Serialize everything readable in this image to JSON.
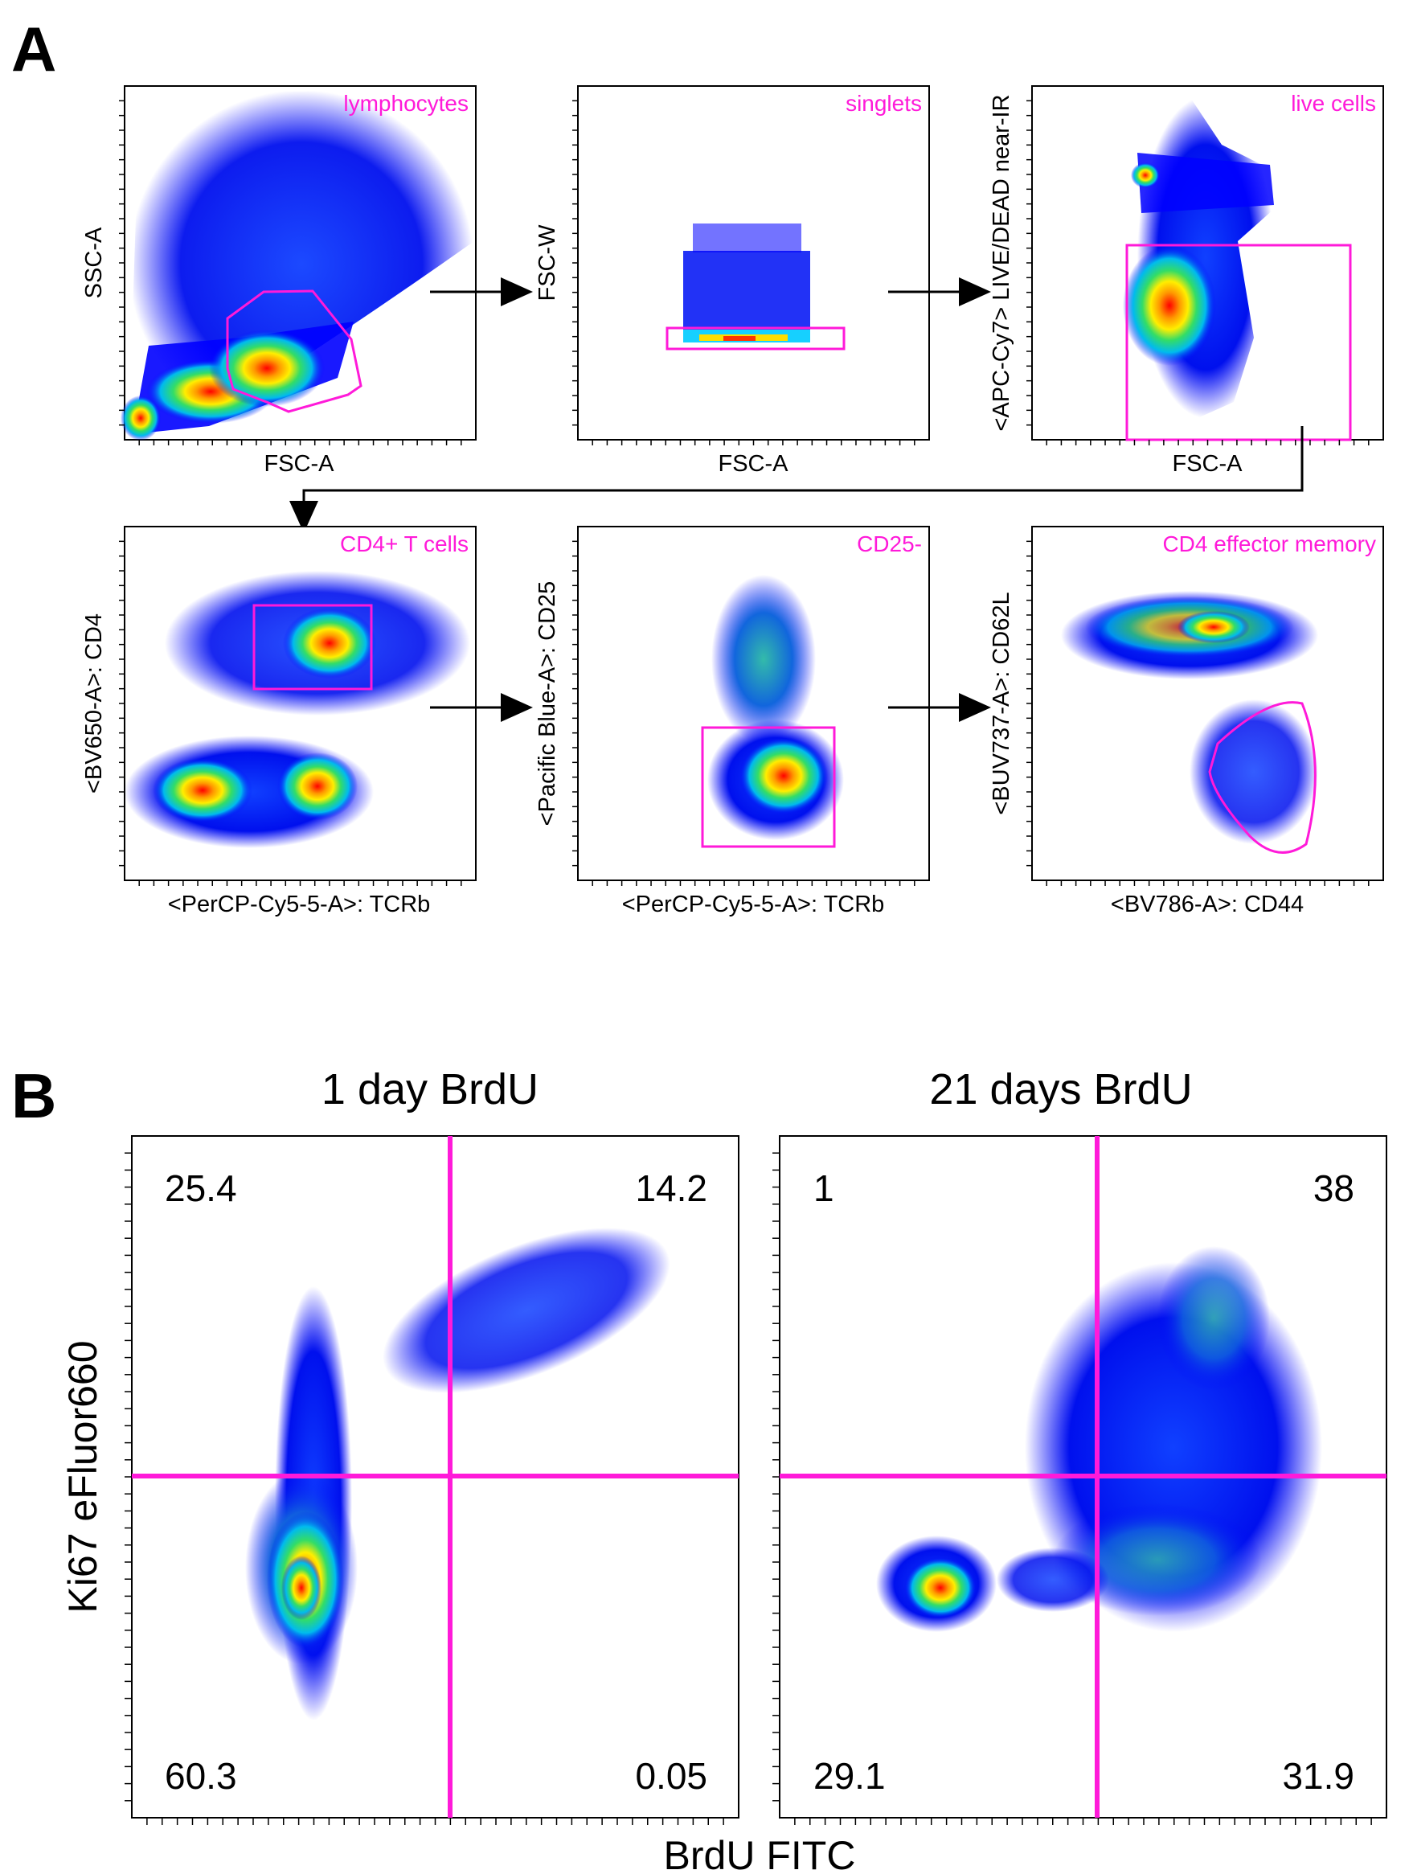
{
  "panel_labels": {
    "a": "A",
    "b": "B"
  },
  "panel_a": {
    "plots": [
      {
        "id": "p1",
        "xlabel": "FSC-A",
        "ylabel": "SSC-A",
        "gate_label": "lymphocytes"
      },
      {
        "id": "p2",
        "xlabel": "FSC-A",
        "ylabel": "FSC-W",
        "gate_label": "singlets"
      },
      {
        "id": "p3",
        "xlabel": "FSC-A",
        "ylabel": "<APC-Cy7> LIVE/DEAD near-IR",
        "gate_label": "live cells"
      },
      {
        "id": "p4",
        "xlabel": "<PerCP-Cy5-5-A>: TCRb",
        "ylabel": "<BV650-A>: CD4",
        "gate_label": "CD4+ T cells"
      },
      {
        "id": "p5",
        "xlabel": "<PerCP-Cy5-5-A>: TCRb",
        "ylabel": "<Pacific Blue-A>: CD25",
        "gate_label": "CD25-"
      },
      {
        "id": "p6",
        "xlabel": "<BV786-A>: CD44",
        "ylabel": "<BUV737-A>: CD62L",
        "gate_label": "CD4 effector memory"
      }
    ]
  },
  "panel_b": {
    "xlabel": "BrdU FITC",
    "ylabel": "Ki67 eFluor660",
    "plots": [
      {
        "id": "b1",
        "title": "1 day BrdU",
        "quadrants": {
          "ul": "25.4",
          "ur": "14.2",
          "ll": "60.3",
          "lr": "0.05"
        }
      },
      {
        "id": "b2",
        "title": "21 days BrdU",
        "quadrants": {
          "ul": "1",
          "ur": "38",
          "ll": "29.1",
          "lr": "31.9"
        }
      }
    ]
  },
  "colors": {
    "gate": "#ff1ad9",
    "low_density": "#0000ff",
    "high_density": "#ff0000"
  }
}
